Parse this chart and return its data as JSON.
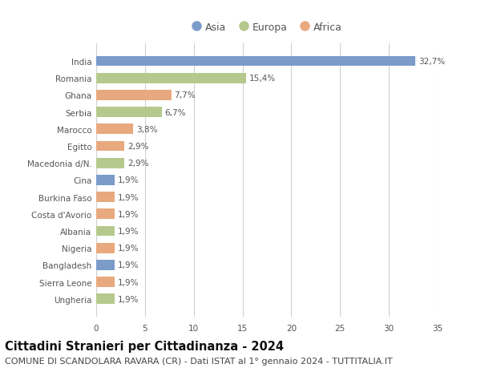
{
  "countries": [
    "India",
    "Romania",
    "Ghana",
    "Serbia",
    "Marocco",
    "Egitto",
    "Macedonia d/N.",
    "Cina",
    "Burkina Faso",
    "Costa d'Avorio",
    "Albania",
    "Nigeria",
    "Bangladesh",
    "Sierra Leone",
    "Ungheria"
  ],
  "values": [
    32.7,
    15.4,
    7.7,
    6.7,
    3.8,
    2.9,
    2.9,
    1.9,
    1.9,
    1.9,
    1.9,
    1.9,
    1.9,
    1.9,
    1.9
  ],
  "labels": [
    "32,7%",
    "15,4%",
    "7,7%",
    "6,7%",
    "3,8%",
    "2,9%",
    "2,9%",
    "1,9%",
    "1,9%",
    "1,9%",
    "1,9%",
    "1,9%",
    "1,9%",
    "1,9%",
    "1,9%"
  ],
  "continents": [
    "Asia",
    "Europa",
    "Africa",
    "Europa",
    "Africa",
    "Africa",
    "Europa",
    "Asia",
    "Africa",
    "Africa",
    "Europa",
    "Africa",
    "Asia",
    "Africa",
    "Europa"
  ],
  "colors": {
    "Asia": "#7b9cc9",
    "Europa": "#b5c98e",
    "Africa": "#e8a97e"
  },
  "legend_order": [
    "Asia",
    "Europa",
    "Africa"
  ],
  "title": "Cittadini Stranieri per Cittadinanza - 2024",
  "subtitle": "COMUNE DI SCANDOLARA RAVARA (CR) - Dati ISTAT al 1° gennaio 2024 - TUTTITALIA.IT",
  "xlim": [
    0,
    35
  ],
  "xticks": [
    0,
    5,
    10,
    15,
    20,
    25,
    30,
    35
  ],
  "background_color": "#ffffff",
  "grid_color": "#d0d0d0",
  "bar_height": 0.6,
  "title_fontsize": 10.5,
  "subtitle_fontsize": 8,
  "label_fontsize": 7.5,
  "tick_fontsize": 7.5,
  "legend_fontsize": 9
}
